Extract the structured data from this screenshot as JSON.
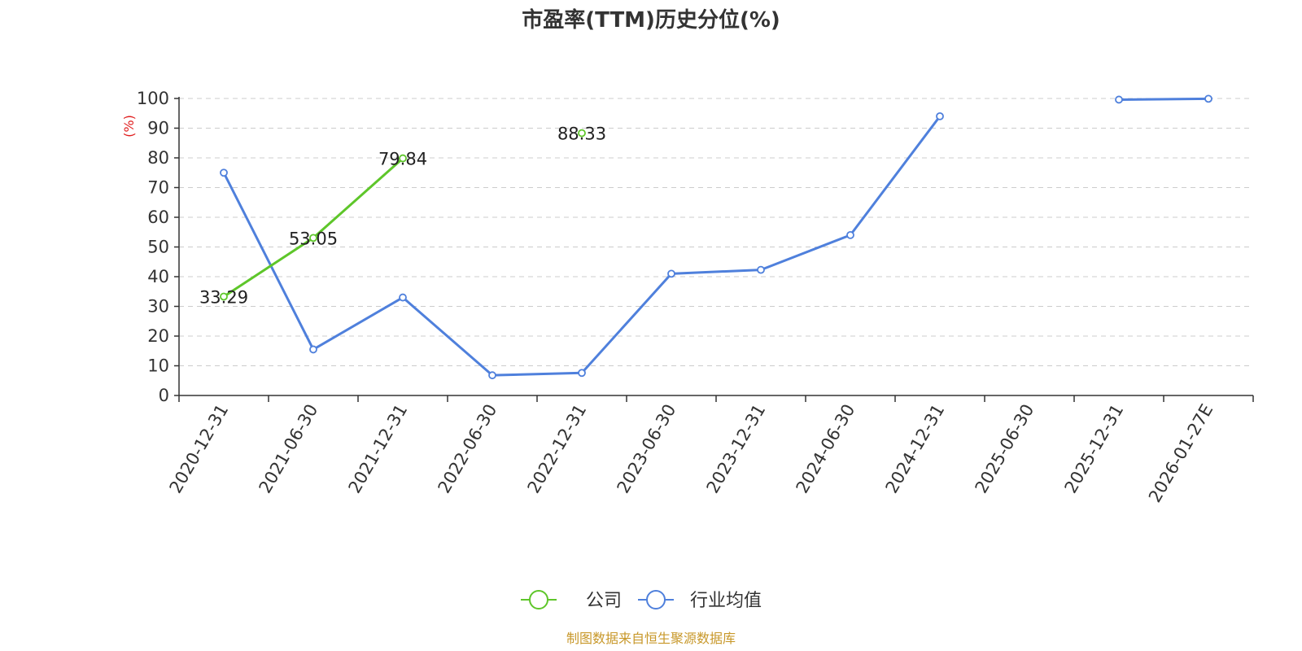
{
  "chart_data": {
    "type": "line",
    "title": "市盈率(TTM)历史分位(%)",
    "ylabel": "(%)",
    "xlabel": "",
    "ylim": [
      0,
      100
    ],
    "yticks": [
      0,
      10,
      20,
      30,
      40,
      50,
      60,
      70,
      80,
      90,
      100
    ],
    "categories": [
      "2020-12-31",
      "2021-06-30",
      "2021-12-31",
      "2022-06-30",
      "2022-12-31",
      "2023-06-30",
      "2023-12-31",
      "2024-06-30",
      "2024-12-31",
      "2025-06-30",
      "2025-12-31",
      "2026-01-27E"
    ],
    "grid": true,
    "legend_position": "bottom",
    "series": [
      {
        "name": "公司",
        "color": "#5ec62a",
        "values": [
          33.29,
          53.05,
          79.84,
          null,
          88.33,
          null,
          null,
          null,
          null,
          null,
          null,
          null
        ],
        "labels": [
          "33.29",
          "53.05",
          "79.84",
          null,
          "88.33",
          null,
          null,
          null,
          null,
          null,
          null,
          null
        ]
      },
      {
        "name": "行业均值",
        "color": "#4f80dc",
        "values": [
          75,
          15.5,
          33,
          6.8,
          7.6,
          41,
          42.3,
          54,
          94,
          null,
          99.6,
          99.9
        ],
        "labels": [
          null,
          null,
          null,
          null,
          null,
          null,
          null,
          null,
          null,
          null,
          null,
          null
        ]
      }
    ],
    "source": "制图数据来自恒生聚源数据库"
  }
}
